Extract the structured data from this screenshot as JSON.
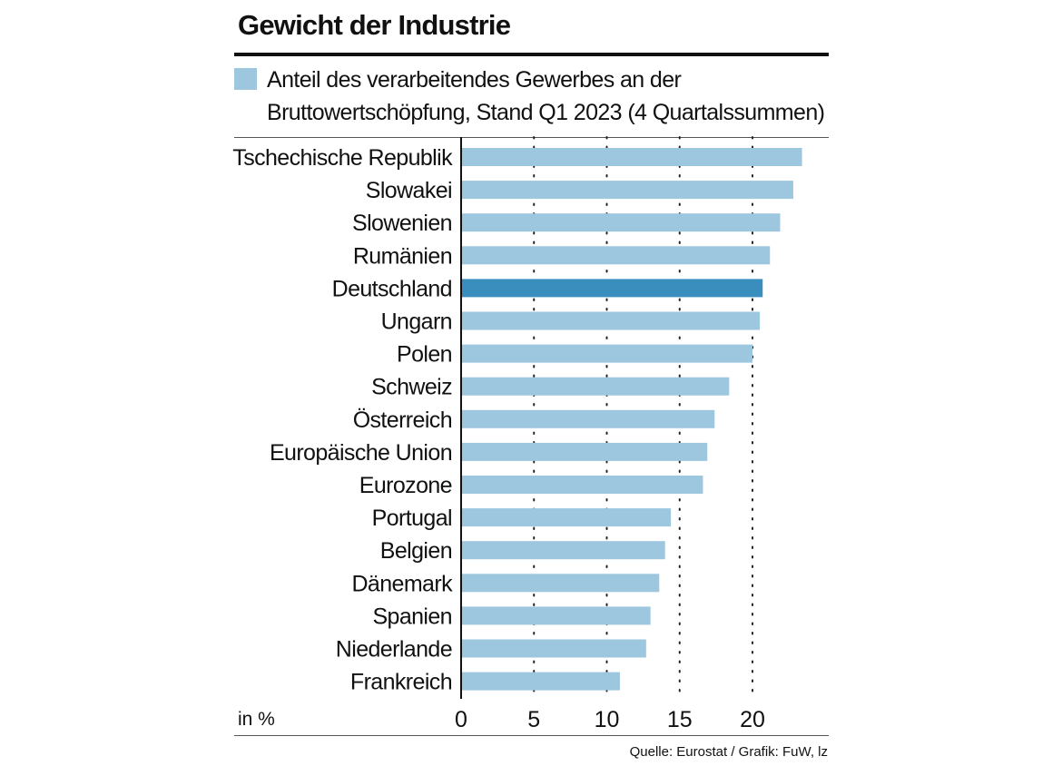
{
  "header": {
    "title": "Gewicht der Industrie"
  },
  "legend": {
    "label": "Anteil des verarbeitendes Gewerbes an der Bruttowertschöpfung, Stand Q1 2023 (4 Quartalssummen)",
    "color": "#9dc6df"
  },
  "footer": {
    "source": "Quelle: Eurostat / Grafik: FuW, lz"
  },
  "chart_data": {
    "type": "bar",
    "orientation": "horizontal",
    "title": "Gewicht der Industrie",
    "unit_label": "in %",
    "categories": [
      "Tschechische Republik",
      "Slowakei",
      "Slowenien",
      "Rumänien",
      "Deutschland",
      "Ungarn",
      "Polen",
      "Schweiz",
      "Österreich",
      "Europäische Union",
      "Eurozone",
      "Portugal",
      "Belgien",
      "Dänemark",
      "Spanien",
      "Niederlande",
      "Frankreich"
    ],
    "values": [
      23.4,
      22.8,
      21.9,
      21.2,
      20.7,
      20.5,
      20.0,
      18.4,
      17.4,
      16.9,
      16.6,
      14.4,
      14.0,
      13.6,
      13.0,
      12.7,
      10.9
    ],
    "highlight": "Deutschland",
    "bar_color": "#9dc6df",
    "highlight_color": "#3a8ebd",
    "xlim": [
      0,
      25
    ],
    "xticks": [
      0,
      5,
      10,
      15,
      20
    ],
    "grid": "dotted vertical"
  }
}
